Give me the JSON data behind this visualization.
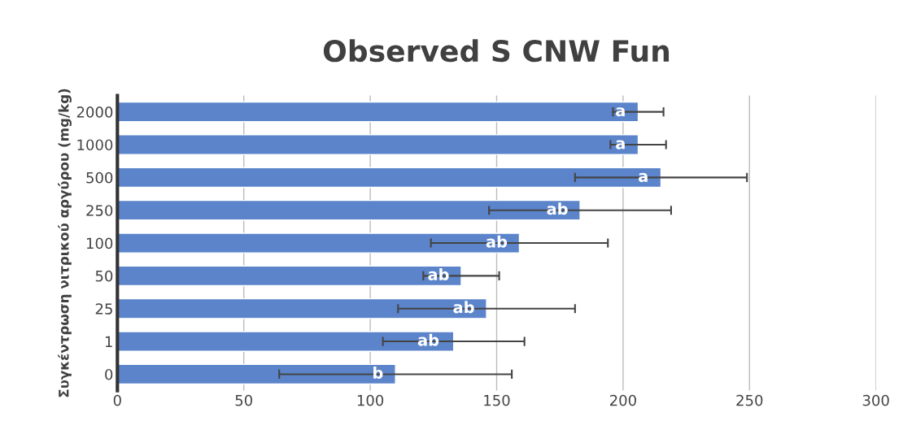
{
  "chart_data": {
    "type": "bar",
    "orientation": "horizontal",
    "title": "Observed S CNW Fun",
    "ylabel": "Συγκέντρωση νιτρικού αργύρου (mg/kg)",
    "categories": [
      "2000",
      "1000",
      "500",
      "250",
      "100",
      "50",
      "25",
      "1",
      "0"
    ],
    "values": [
      206,
      206,
      215,
      183,
      159,
      136,
      146,
      133,
      110
    ],
    "errors": [
      10,
      11,
      34,
      36,
      35,
      15,
      35,
      28,
      46
    ],
    "color": "#5b84cb",
    "xlim": [
      0,
      300
    ],
    "xticks": [
      0,
      50,
      100,
      150,
      200,
      250,
      300
    ],
    "grid": "x",
    "legend": false,
    "annotations": [
      {
        "text": "a",
        "x": 199,
        "y": "2000"
      },
      {
        "text": "a",
        "x": 199,
        "y": "1000"
      },
      {
        "text": "a",
        "x": 208,
        "y": "500"
      },
      {
        "text": "ab",
        "x": 174,
        "y": "250"
      },
      {
        "text": "ab",
        "x": 150,
        "y": "100"
      },
      {
        "text": "ab",
        "x": 127,
        "y": "50"
      },
      {
        "text": "ab",
        "x": 137,
        "y": "25"
      },
      {
        "text": "ab",
        "x": 123,
        "y": "1"
      },
      {
        "text": "b",
        "x": 103,
        "y": "0"
      }
    ]
  }
}
